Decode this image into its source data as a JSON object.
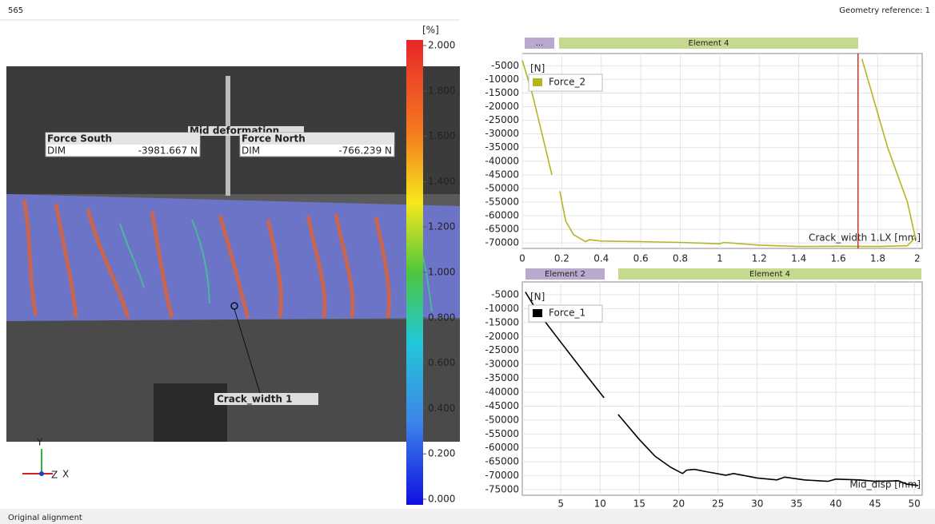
{
  "header": {
    "frame": "565",
    "geometry_reference": "Geometry reference: 1"
  },
  "image_view": {
    "colorbar": {
      "unit": "[%]",
      "ticks": [
        {
          "value": 2,
          "label": "2.000"
        },
        {
          "value": 1.8,
          "label": "1.800"
        },
        {
          "value": 1.6,
          "label": "1.600"
        },
        {
          "value": 1.4,
          "label": "1.400"
        },
        {
          "value": 1.2,
          "label": "1.200"
        },
        {
          "value": 1,
          "label": "1.000"
        },
        {
          "value": 0.8,
          "label": "0.800"
        },
        {
          "value": 0.6,
          "label": "0.600"
        },
        {
          "value": 0.4,
          "label": "0.400"
        },
        {
          "value": 0.2,
          "label": "0.200"
        },
        {
          "value": 0,
          "label": "0.000"
        }
      ]
    },
    "labels": [
      {
        "title": "Force South",
        "key": "DIM",
        "value": "-3981.667 N"
      },
      {
        "title": "Force North",
        "key": "DIM",
        "value": "-766.239 N"
      }
    ],
    "mid_label": "Mid deformation",
    "crack_label": "Crack_width 1",
    "axes": {
      "y": "Y",
      "z": "Z",
      "x": "X"
    }
  },
  "chart_data": [
    {
      "type": "line",
      "y_label": "[N]",
      "x_label": "Crack_width 1.LX [mm]",
      "segments": [
        {
          "label": "...",
          "color": "#b9a9cc"
        },
        {
          "label": "Element 4",
          "color": "#c5d98f"
        }
      ],
      "x": [
        0,
        0.05,
        0.1,
        0.15,
        0.17,
        0.19,
        0.22,
        0.26,
        0.32,
        0.34,
        0.4,
        0.6,
        0.8,
        1.0,
        1.02,
        1.2,
        1.4,
        1.6,
        1.8,
        1.95,
        1.99,
        1.95,
        1.85,
        1.72
      ],
      "series": [
        {
          "name": "Force_2",
          "color": "#b5b524",
          "values": [
            -3000,
            -15000,
            -30000,
            -45000,
            null,
            -51000,
            -62000,
            -67000,
            -69500,
            -68800,
            -69300,
            -69500,
            -69800,
            -70300,
            -69800,
            -70800,
            -71300,
            -71200,
            -71300,
            -71000,
            -68000,
            -55000,
            -35000,
            -2500
          ]
        }
      ],
      "cursor_x": 1.7,
      "cursor_color": "#c0392b",
      "xlim": [
        0,
        2.025
      ],
      "ylim": [
        -72000,
        -500
      ],
      "xticks": [
        0,
        0.2,
        0.4,
        0.6,
        0.8,
        1,
        1.2,
        1.4,
        1.6,
        1.8,
        2
      ],
      "yticks": [
        -5000,
        -10000,
        -15000,
        -20000,
        -25000,
        -30000,
        -35000,
        -40000,
        -45000,
        -50000,
        -55000,
        -60000,
        -65000,
        -70000
      ],
      "grid": true
    },
    {
      "type": "line",
      "y_label": "[N]",
      "x_label": "Mid_disp [mm]",
      "segments": [
        {
          "label": "Element 2",
          "color": "#b9a9cc"
        },
        {
          "label": "Element 4",
          "color": "#c5d98f"
        }
      ],
      "x": [
        0.5,
        2,
        5,
        8,
        10.5,
        11.5,
        12.3,
        15,
        17,
        19,
        20.5,
        21,
        22,
        24,
        26,
        27,
        30,
        32.5,
        33.5,
        36,
        39,
        40,
        43,
        45,
        48,
        49,
        50.5
      ],
      "series": [
        {
          "name": "Force_1",
          "color": "#000000",
          "values": [
            -4000,
            -11000,
            -22000,
            -33000,
            -42000,
            null,
            -48000,
            -57000,
            -63000,
            -67000,
            -69200,
            -68000,
            -67700,
            -68800,
            -69800,
            -69200,
            -70800,
            -71500,
            -70500,
            -71500,
            -72000,
            -71200,
            -71500,
            -72000,
            -71800,
            -73000,
            -73500
          ]
        }
      ],
      "xlim": [
        0.1,
        51
      ],
      "ylim": [
        -77000,
        -400
      ],
      "xticks": [
        5,
        10,
        15,
        20,
        25,
        30,
        35,
        40,
        45,
        50
      ],
      "yticks": [
        -5000,
        -10000,
        -15000,
        -20000,
        -25000,
        -30000,
        -35000,
        -40000,
        -45000,
        -50000,
        -55000,
        -60000,
        -65000,
        -70000,
        -75000
      ],
      "grid": true
    }
  ],
  "status_bar": "Original alignment"
}
